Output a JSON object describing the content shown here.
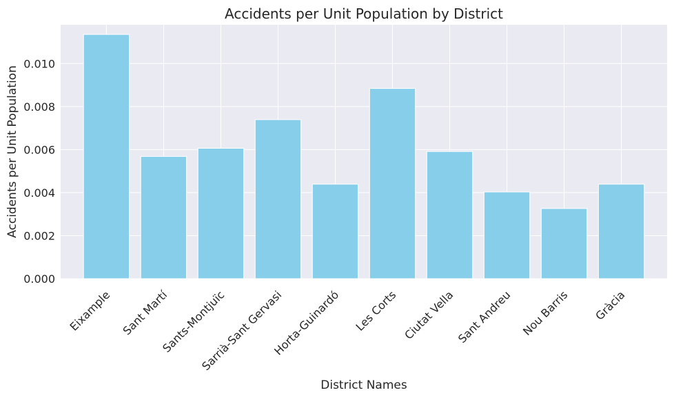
{
  "chart_data": {
    "type": "bar",
    "title": "Accidents per Unit Population by District",
    "xlabel": "District Names",
    "ylabel": "Accidents per Unit Population",
    "categories": [
      "Eixample",
      "Sant Martí",
      "Sants-Montjuïc",
      "Sarrià-Sant Gervasi",
      "Horta-Guinardó",
      "Les Corts",
      "Ciutat Vella",
      "Sant Andreu",
      "Nou Barris",
      "Gràcia"
    ],
    "values": [
      0.01135,
      0.00568,
      0.00606,
      0.00739,
      0.00439,
      0.00884,
      0.00591,
      0.00403,
      0.00326,
      0.00439
    ],
    "ylim": [
      0,
      0.0118
    ],
    "yticks": [
      0.0,
      0.002,
      0.004,
      0.006,
      0.008,
      0.01
    ],
    "ytick_labels": [
      "0.000",
      "0.002",
      "0.004",
      "0.006",
      "0.008",
      "0.010"
    ],
    "grid": true,
    "bar_color": "#87CEEB",
    "background_color": "#EAEAF2",
    "grid_color": "#FFFFFF"
  }
}
